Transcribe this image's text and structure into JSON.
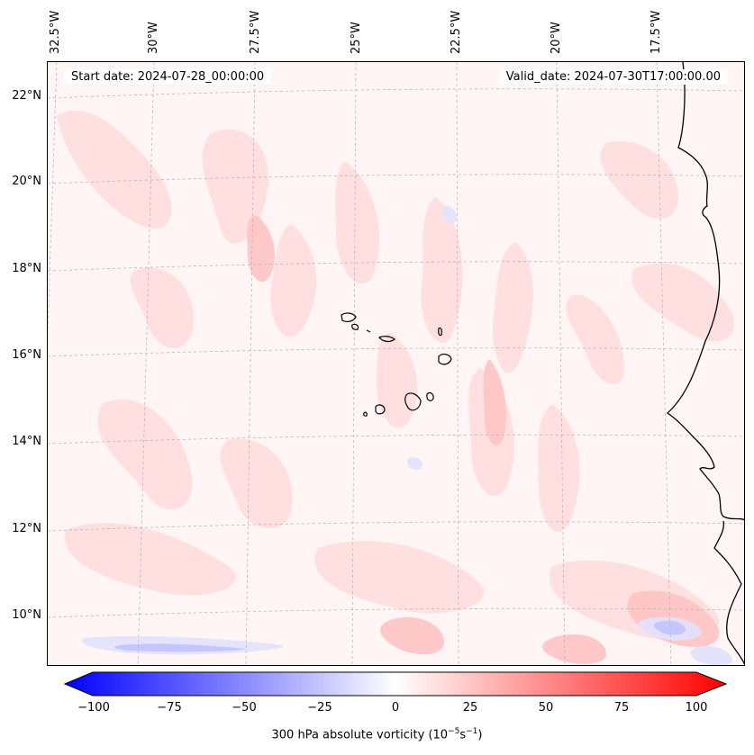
{
  "map": {
    "start_date_label": "Start date: 2024-07-28_00:00:00",
    "valid_date_label": "Valid_date: 2024-07-30T17:00:00.00",
    "longitude_labels": [
      "32.5°W",
      "30°W",
      "27.5°W",
      "25°W",
      "22.5°W",
      "20°W",
      "17.5°W"
    ],
    "latitude_labels": [
      "22°N",
      "20°N",
      "18°N",
      "16°N",
      "14°N",
      "12°N",
      "10°N"
    ],
    "field": "300 hPa absolute vorticity",
    "colors": {
      "positive": "#ff0000",
      "negative": "#0000ff",
      "neutral": "#ffffff",
      "coastline": "#000000"
    }
  },
  "colorbar": {
    "ticks": [
      "−100",
      "−75",
      "−50",
      "−25",
      "0",
      "25",
      "50",
      "75",
      "100"
    ],
    "label": "300 hPa absolute vorticity (10",
    "unit_exp1": "−5",
    "unit_mid": "s",
    "unit_exp2": "−1",
    "unit_close": ")",
    "min": -100,
    "max": 100
  }
}
